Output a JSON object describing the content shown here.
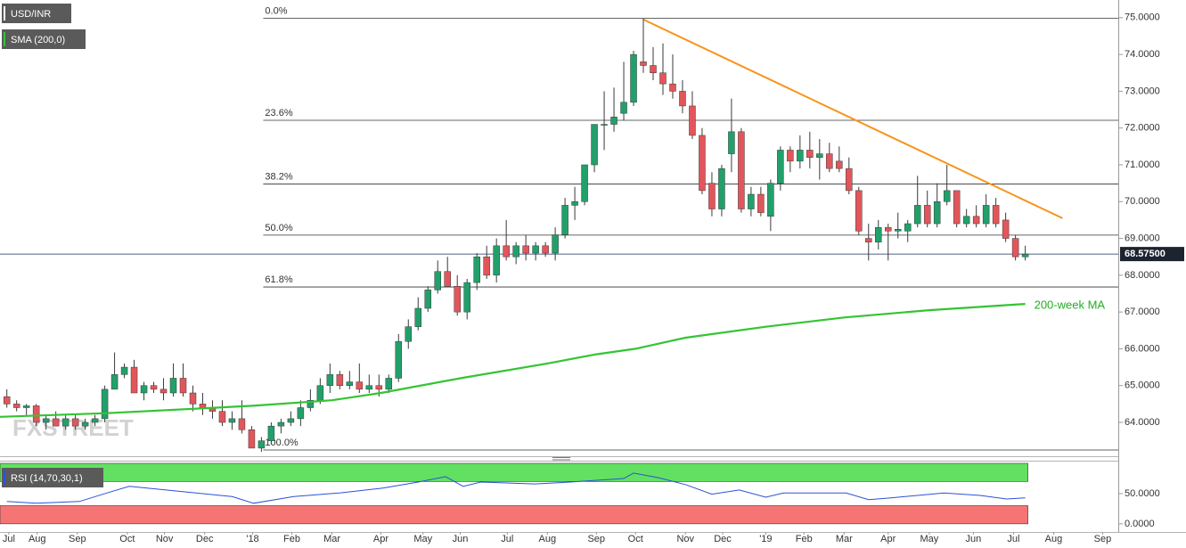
{
  "chart_data": [
    {
      "type": "candlestick",
      "name": "USD/INR",
      "watermark": "FXSTREET",
      "up_color": "#22a06b",
      "down_color": "#e2565b",
      "wick_color": "#3a3a3a",
      "open": [
        64.7,
        64.5,
        64.4,
        64.45,
        64.0,
        64.1,
        63.9,
        64.1,
        63.9,
        64.0,
        64.1,
        64.9,
        65.3,
        65.5,
        64.8,
        65.0,
        64.9,
        64.8,
        65.2,
        64.8,
        64.5,
        64.4,
        64.3,
        64.0,
        64.1,
        63.8,
        63.3,
        63.5,
        63.9,
        64.0,
        64.1,
        64.4,
        64.6,
        65.0,
        65.3,
        65.0,
        65.1,
        64.9,
        65.0,
        64.9,
        65.2,
        66.2,
        66.6,
        67.1,
        67.6,
        68.1,
        67.7,
        67.0,
        67.8,
        68.5,
        68.0,
        68.8,
        68.5,
        68.8,
        68.6,
        68.8,
        68.6,
        69.1,
        69.9,
        70.0,
        71.0,
        72.1,
        72.1,
        72.4,
        72.7,
        73.8,
        73.7,
        73.5,
        73.2,
        73.0,
        72.6,
        71.8,
        70.5,
        69.8,
        71.3,
        71.9,
        69.8,
        70.2,
        69.6,
        70.5,
        71.4,
        71.1,
        71.4,
        71.2,
        71.3,
        71.1,
        70.9,
        70.3,
        69.0,
        68.9,
        69.3,
        69.2,
        69.2,
        69.4,
        69.9,
        69.4,
        70.0,
        70.3,
        69.4,
        69.6,
        69.4,
        69.9,
        69.5,
        69.0,
        68.5
      ],
      "high": [
        64.9,
        64.6,
        64.5,
        64.5,
        64.2,
        64.3,
        64.2,
        64.2,
        64.1,
        64.2,
        65.0,
        65.9,
        65.6,
        65.7,
        65.1,
        65.1,
        65.2,
        65.6,
        65.6,
        65.0,
        64.8,
        64.6,
        64.6,
        64.3,
        64.6,
        63.9,
        63.6,
        64.0,
        64.1,
        64.3,
        64.6,
        64.9,
        65.2,
        65.6,
        65.4,
        65.4,
        65.6,
        65.3,
        65.3,
        65.3,
        66.4,
        66.8,
        67.4,
        67.7,
        68.4,
        68.5,
        68.0,
        67.9,
        68.6,
        68.8,
        69.0,
        69.5,
        68.9,
        69.1,
        68.9,
        68.9,
        69.3,
        70.1,
        70.4,
        71.0,
        72.1,
        73.0,
        73.1,
        73.8,
        74.1,
        74.98,
        74.2,
        74.3,
        74.0,
        73.3,
        73.0,
        72.0,
        70.8,
        71.0,
        72.8,
        72.0,
        70.4,
        70.4,
        70.6,
        71.5,
        71.5,
        71.8,
        71.9,
        71.7,
        71.6,
        71.5,
        71.2,
        70.4,
        69.4,
        69.5,
        69.4,
        69.7,
        69.5,
        70.7,
        70.3,
        70.5,
        71.0,
        70.3,
        69.8,
        69.9,
        70.2,
        70.1,
        69.7,
        69.1,
        68.8
      ],
      "low": [
        64.4,
        64.3,
        64.2,
        63.9,
        63.8,
        63.9,
        63.8,
        63.8,
        63.8,
        63.9,
        64.0,
        64.9,
        65.2,
        64.8,
        64.6,
        64.8,
        64.6,
        64.7,
        64.7,
        64.3,
        64.2,
        64.1,
        63.9,
        63.8,
        63.7,
        63.3,
        63.2,
        63.4,
        63.7,
        63.9,
        63.9,
        64.3,
        64.5,
        64.8,
        64.9,
        64.9,
        64.8,
        64.8,
        64.7,
        64.8,
        65.1,
        66.0,
        66.5,
        67.0,
        67.5,
        67.7,
        66.9,
        66.8,
        67.6,
        67.9,
        67.8,
        68.4,
        68.3,
        68.4,
        68.4,
        68.5,
        68.4,
        69.0,
        69.5,
        69.9,
        70.8,
        71.4,
        71.9,
        72.2,
        72.6,
        73.5,
        73.3,
        72.9,
        72.8,
        72.4,
        71.7,
        70.2,
        69.6,
        69.6,
        70.8,
        69.7,
        69.6,
        69.6,
        69.2,
        70.3,
        70.8,
        70.9,
        70.9,
        70.6,
        70.8,
        70.8,
        70.2,
        69.1,
        68.4,
        68.7,
        68.4,
        69.0,
        68.9,
        69.3,
        69.3,
        69.3,
        69.9,
        69.3,
        69.3,
        69.3,
        69.3,
        69.3,
        68.9,
        68.4,
        68.4
      ],
      "close": [
        64.5,
        64.4,
        64.45,
        64.0,
        64.1,
        63.9,
        64.1,
        63.9,
        64.0,
        64.1,
        64.9,
        65.3,
        65.5,
        64.8,
        65.0,
        64.9,
        64.8,
        65.2,
        64.8,
        64.5,
        64.4,
        64.3,
        64.0,
        64.1,
        63.8,
        63.3,
        63.5,
        63.9,
        64.0,
        64.1,
        64.4,
        64.6,
        65.0,
        65.3,
        65.0,
        65.1,
        64.9,
        65.0,
        64.9,
        65.2,
        66.2,
        66.6,
        67.1,
        67.6,
        68.1,
        67.7,
        67.0,
        67.8,
        68.5,
        68.0,
        68.8,
        68.5,
        68.8,
        68.6,
        68.8,
        68.6,
        69.1,
        69.9,
        70.0,
        71.0,
        72.1,
        72.1,
        72.3,
        72.7,
        74.0,
        73.7,
        73.5,
        73.2,
        73.0,
        72.6,
        71.8,
        70.3,
        69.8,
        70.9,
        71.9,
        69.8,
        70.2,
        69.7,
        70.5,
        71.4,
        71.1,
        71.4,
        71.2,
        71.3,
        70.9,
        70.9,
        70.3,
        69.2,
        68.9,
        69.3,
        69.2,
        69.25,
        69.4,
        69.9,
        69.4,
        70.0,
        70.3,
        69.4,
        69.6,
        69.4,
        69.9,
        69.4,
        69.0,
        68.5,
        68.575
      ],
      "sma": {
        "name": "SMA (200,0)",
        "color": "#33c433",
        "x": [
          -0.7,
          10.2,
          25.1,
          33.2,
          38.2,
          46.3,
          55.2,
          60.2,
          64.2,
          69.3,
          77.5,
          85.5,
          94.2,
          104
        ],
        "values": [
          64.15,
          64.25,
          64.45,
          64.6,
          64.8,
          65.2,
          65.6,
          65.85,
          66.0,
          66.3,
          66.6,
          66.85,
          67.05,
          67.22
        ]
      },
      "annotation": "200-week MA",
      "trendline": {
        "color": "#f7941d",
        "x": [
          65,
          107.8
        ],
        "y": [
          74.95,
          69.55
        ]
      },
      "fib_levels": [
        {
          "label": "0.0%",
          "price": 74.98
        },
        {
          "label": "23.6%",
          "price": 72.21
        },
        {
          "label": "38.2%",
          "price": 70.48
        },
        {
          "label": "50.0%",
          "price": 69.09
        },
        {
          "label": "61.8%",
          "price": 67.68
        },
        {
          "label": "100.0%",
          "price": 63.25
        }
      ],
      "price_tag": {
        "value": 68.575,
        "label": "68.57500"
      },
      "xlim": [
        -0.7,
        113.5
      ],
      "xticks": [
        {
          "value": 0.2,
          "label": "Jul"
        },
        {
          "value": 3.1,
          "label": "Aug"
        },
        {
          "value": 7.2,
          "label": "Sep"
        },
        {
          "value": 12.3,
          "label": "Oct"
        },
        {
          "value": 16.1,
          "label": "Nov"
        },
        {
          "value": 20.2,
          "label": "Dec"
        },
        {
          "value": 25.1,
          "label": "'18"
        },
        {
          "value": 29.1,
          "label": "Feb"
        },
        {
          "value": 33.2,
          "label": "Mar"
        },
        {
          "value": 38.2,
          "label": "Apr"
        },
        {
          "value": 42.5,
          "label": "May"
        },
        {
          "value": 46.3,
          "label": "Jun"
        },
        {
          "value": 51.1,
          "label": "Jul"
        },
        {
          "value": 55.2,
          "label": "Aug"
        },
        {
          "value": 60.2,
          "label": "Sep"
        },
        {
          "value": 64.2,
          "label": "Oct"
        },
        {
          "value": 69.3,
          "label": "Nov"
        },
        {
          "value": 73.1,
          "label": "Dec"
        },
        {
          "value": 77.5,
          "label": "'19"
        },
        {
          "value": 81.4,
          "label": "Feb"
        },
        {
          "value": 85.5,
          "label": "Mar"
        },
        {
          "value": 90.0,
          "label": "Apr"
        },
        {
          "value": 94.2,
          "label": "May"
        },
        {
          "value": 98.7,
          "label": "Jun"
        },
        {
          "value": 102.8,
          "label": "Jul"
        },
        {
          "value": 106.9,
          "label": "Aug"
        },
        {
          "value": 111.9,
          "label": "Sep"
        }
      ],
      "ylim": [
        63.08,
        75.48
      ],
      "yticks": [
        {
          "value": 64,
          "label": "64.0000"
        },
        {
          "value": 65,
          "label": "65.0000"
        },
        {
          "value": 66,
          "label": "66.0000"
        },
        {
          "value": 67,
          "label": "67.0000"
        },
        {
          "value": 68,
          "label": "68.0000"
        },
        {
          "value": 69,
          "label": "69.0000"
        },
        {
          "value": 70,
          "label": "70.0000"
        },
        {
          "value": 71,
          "label": "71.0000"
        },
        {
          "value": 72,
          "label": "72.0000"
        },
        {
          "value": 73,
          "label": "73.0000"
        },
        {
          "value": 74,
          "label": "74.0000"
        },
        {
          "value": 75,
          "label": "75.0000"
        }
      ]
    },
    {
      "type": "line",
      "name": "RSI (14,70,30,1)",
      "color": "#2a52d6",
      "x": [
        0,
        3,
        7.4,
        10.2,
        12.5,
        17.5,
        23,
        25.2,
        29.3,
        33.9,
        38.4,
        42,
        44.8,
        46.6,
        48.4,
        53.9,
        57.5,
        63,
        64,
        66.6,
        69.3,
        72,
        74.8,
        77.5,
        79.3,
        85.7,
        88,
        90.3,
        95.7,
        99.4,
        102.1,
        104
      ],
      "values": [
        37,
        34,
        37,
        51,
        62,
        54,
        45,
        34,
        45,
        51,
        59,
        69,
        78,
        62,
        69,
        66,
        69,
        75,
        84,
        76,
        65,
        49,
        56,
        44,
        51,
        51,
        40,
        43,
        51,
        47,
        41,
        43
      ],
      "zones": [
        {
          "from": 70,
          "to": 100,
          "color": "#62e062"
        },
        {
          "from": 0,
          "to": 30,
          "color": "#f57575"
        }
      ],
      "ylim": [
        -12,
        100
      ],
      "yticks": [
        {
          "value": 50,
          "label": "50.0000"
        },
        {
          "value": 0,
          "label": "0.0000"
        }
      ]
    }
  ]
}
